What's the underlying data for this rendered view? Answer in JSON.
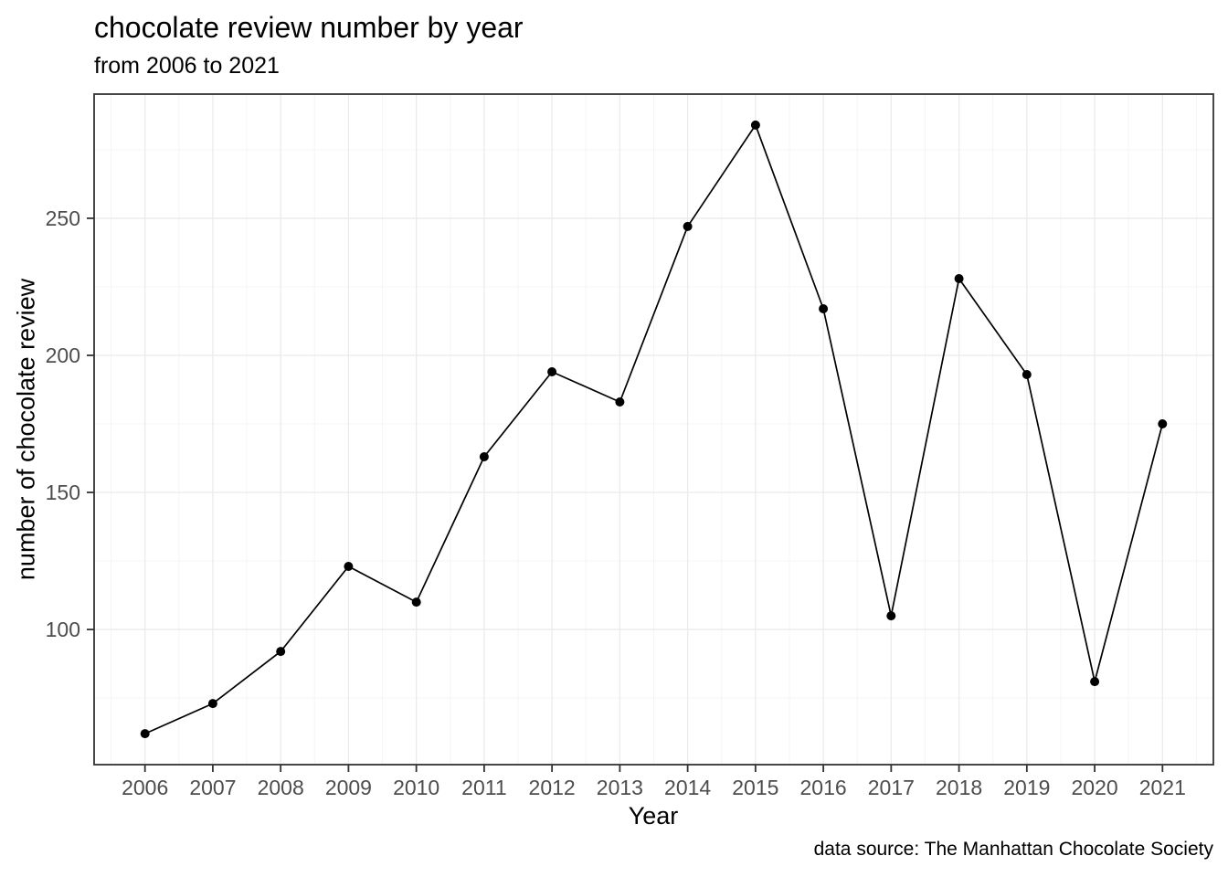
{
  "chart_data": {
    "type": "line",
    "title": "chocolate review number by year",
    "subtitle": "from 2006 to 2021",
    "xlabel": "Year",
    "ylabel": "number of chocolate review",
    "caption": "data source: The Manhattan Chocolate Society",
    "categories": [
      2006,
      2007,
      2008,
      2009,
      2010,
      2011,
      2012,
      2013,
      2014,
      2015,
      2016,
      2017,
      2018,
      2019,
      2020,
      2021
    ],
    "values": [
      62,
      73,
      92,
      123,
      110,
      163,
      194,
      183,
      247,
      284,
      217,
      105,
      228,
      193,
      81,
      175
    ],
    "x_tick_labels": [
      "2006",
      "2007",
      "2008",
      "2009",
      "2010",
      "2011",
      "2012",
      "2013",
      "2014",
      "2015",
      "2016",
      "2017",
      "2018",
      "2019",
      "2020",
      "2021"
    ],
    "y_tick_labels": [
      "100",
      "150",
      "200",
      "250"
    ],
    "y_major_ticks": [
      100,
      150,
      200,
      250
    ],
    "y_minor_ticks": [
      75,
      125,
      175,
      225,
      275
    ],
    "ylim": [
      50.7,
      295.3
    ],
    "xlim": [
      2005.25,
      2021.75
    ],
    "grid": true,
    "legend": false,
    "colors": {
      "line": "#000000",
      "point": "#000000",
      "grid_major": "#EBEBEB",
      "grid_minor": "#F5F5F5",
      "panel_border": "#333333",
      "tick_mark": "#333333",
      "tick_label": "#4D4D4D",
      "text": "#000000",
      "background": "#FFFFFF"
    }
  }
}
